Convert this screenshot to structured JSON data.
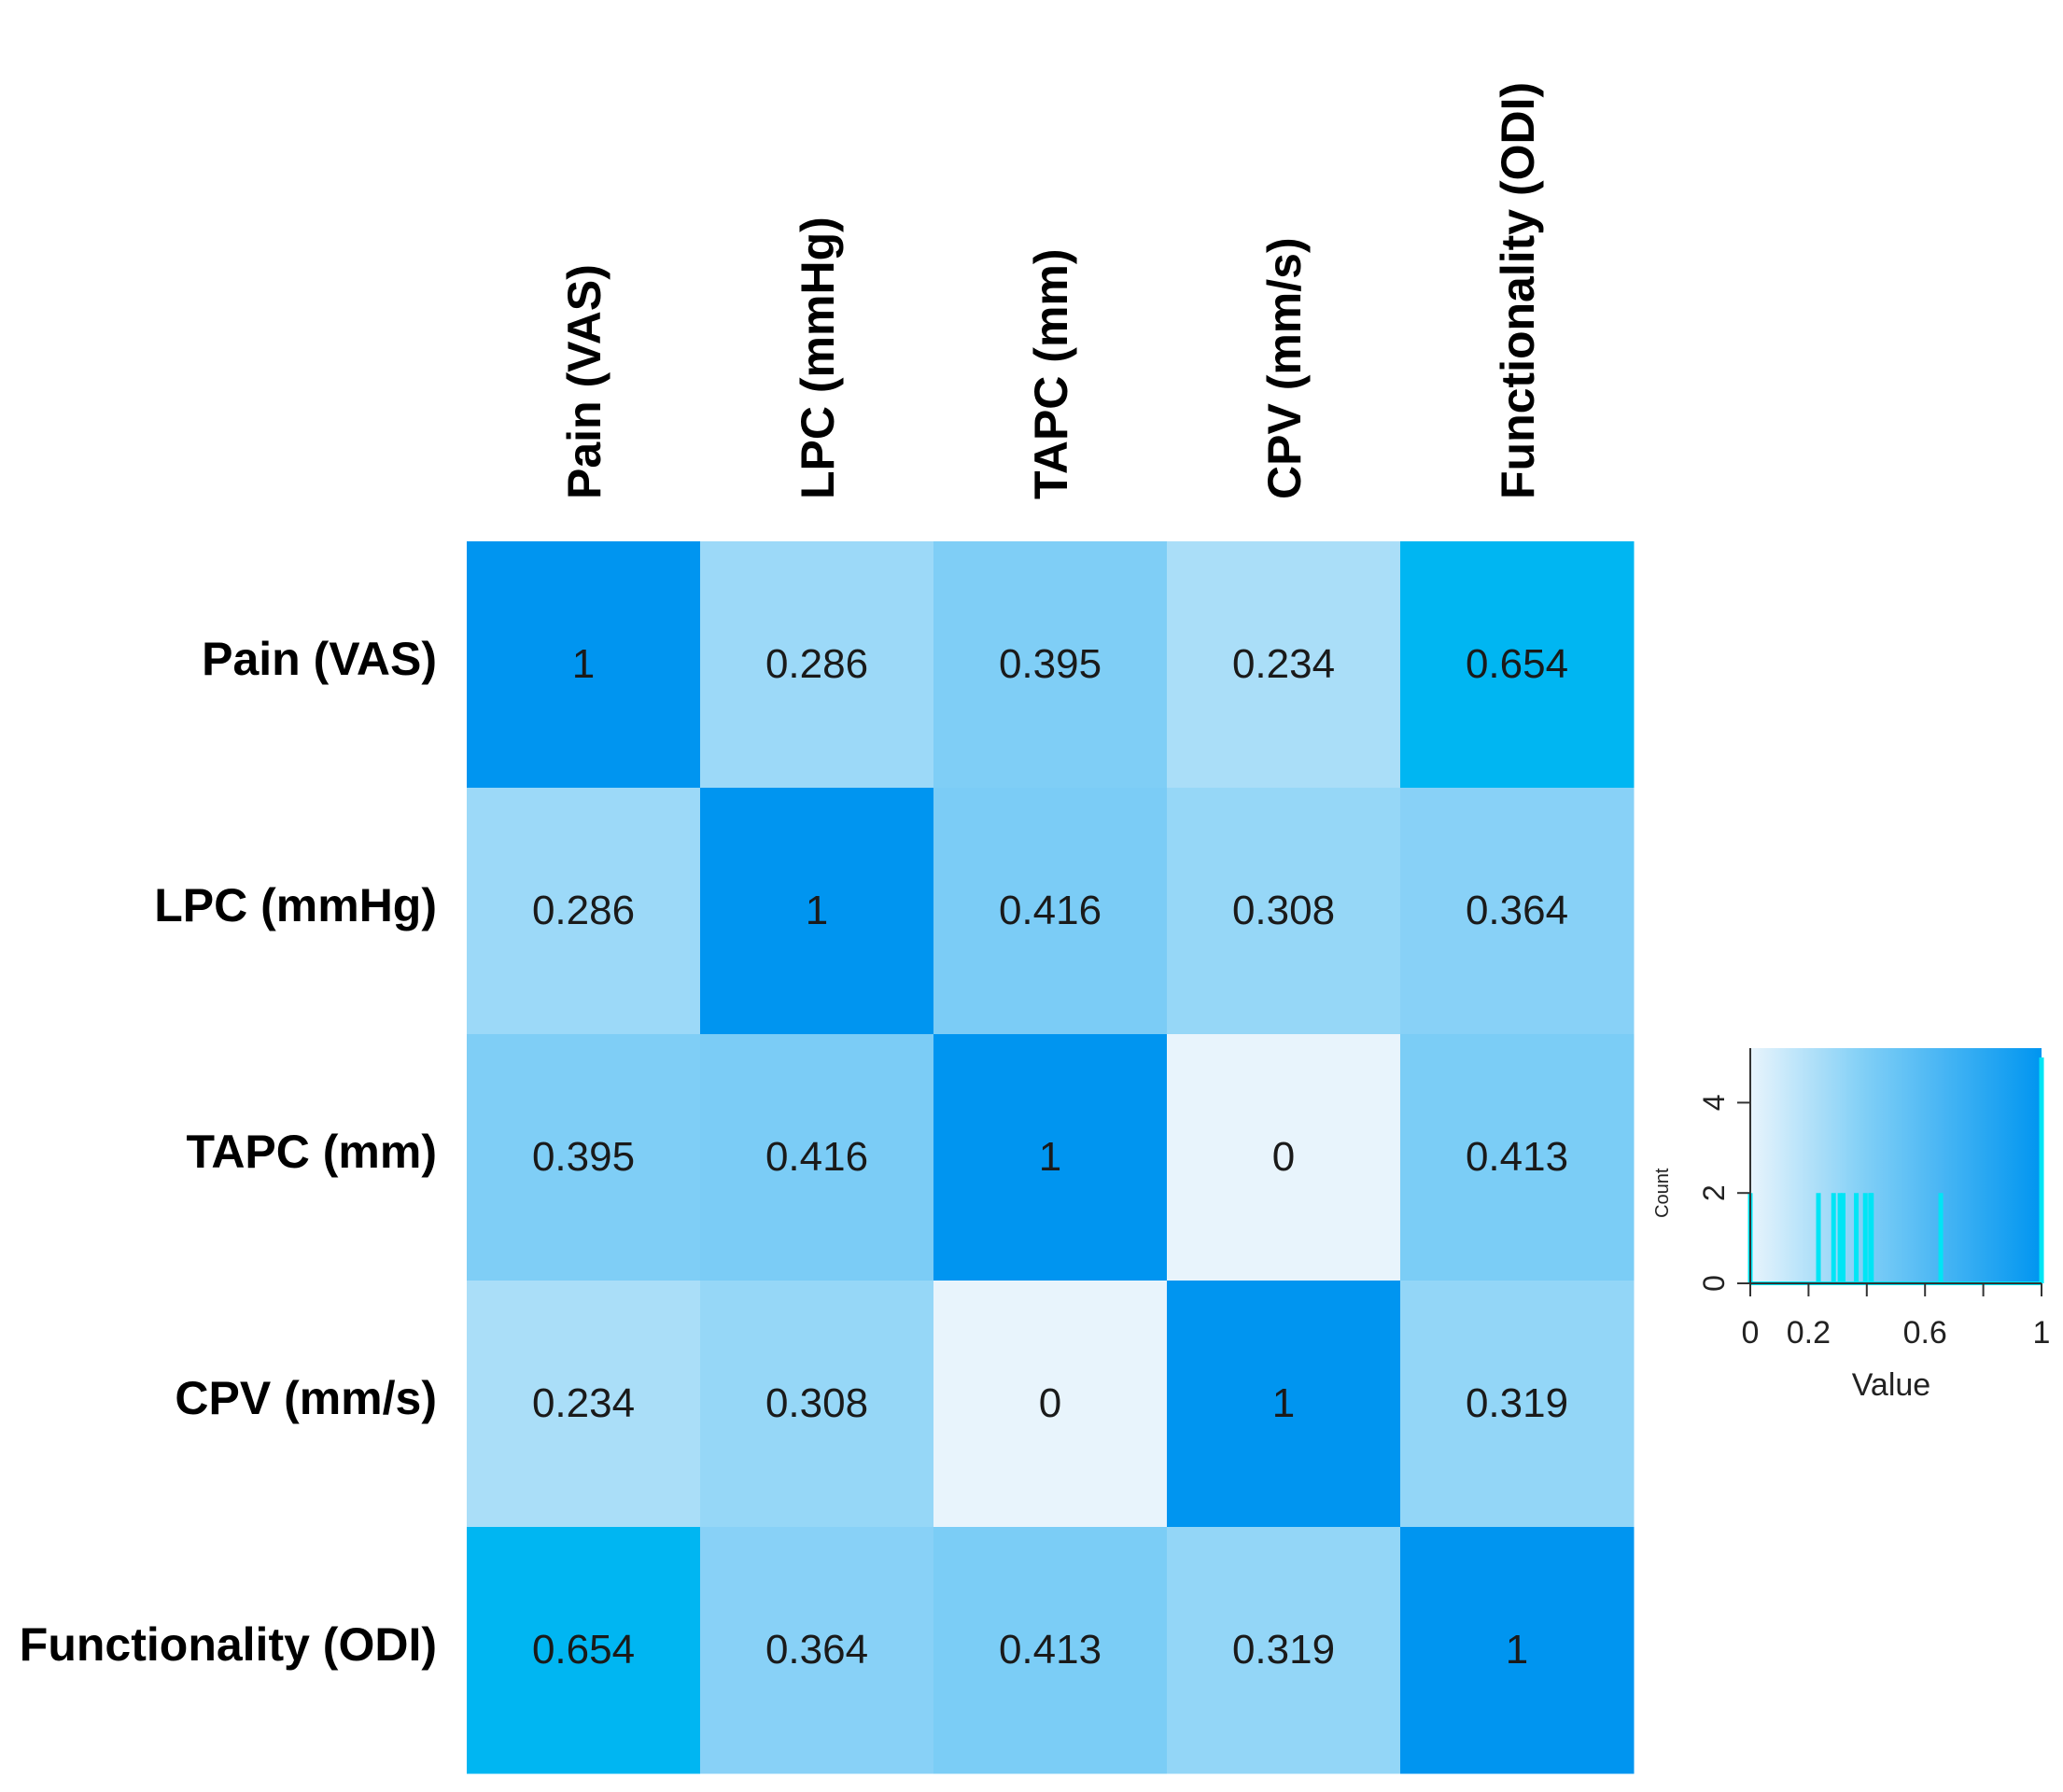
{
  "chart_data": {
    "type": "heatmap",
    "row_labels": [
      "Pain (VAS)",
      "LPC (mmHg)",
      "TAPC (mm)",
      "CPV (mm/s)",
      "Functionality (ODI)"
    ],
    "col_labels": [
      "Pain (VAS)",
      "LPC (mmHg)",
      "TAPC (mm)",
      "CPV (mm/s)",
      "Functionality (ODI)"
    ],
    "values": [
      [
        1,
        0.286,
        0.395,
        0.234,
        0.654
      ],
      [
        0.286,
        1,
        0.416,
        0.308,
        0.364
      ],
      [
        0.395,
        0.416,
        1,
        0,
        0.413
      ],
      [
        0.234,
        0.308,
        0,
        1,
        0.319
      ],
      [
        0.654,
        0.364,
        0.413,
        0.319,
        1
      ]
    ],
    "cell_labels": [
      [
        "1",
        "0.286",
        "0.395",
        "0.234",
        "0.654"
      ],
      [
        "0.286",
        "1",
        "0.416",
        "0.308",
        "0.364"
      ],
      [
        "0.395",
        "0.416",
        "1",
        "0",
        "0.413"
      ],
      [
        "0.234",
        "0.308",
        "0",
        "1",
        "0.319"
      ],
      [
        "0.654",
        "0.364",
        "0.413",
        "0.319",
        "1"
      ]
    ],
    "color_key": {
      "xlabel": "Value",
      "ylabel": "Count",
      "x_ticks": [
        "0",
        "0.2",
        "0.6",
        "1"
      ],
      "x_tick_values": [
        0,
        0.2,
        0.6,
        1
      ],
      "y_ticks": [
        "0",
        "2",
        "4"
      ],
      "y_tick_values": [
        0,
        2,
        4
      ],
      "xlim": [
        0,
        1
      ],
      "ylim": [
        0,
        5
      ],
      "histogram": [
        {
          "x": 0.0,
          "count": 2
        },
        {
          "x": 0.234,
          "count": 2
        },
        {
          "x": 0.286,
          "count": 2
        },
        {
          "x": 0.308,
          "count": 2
        },
        {
          "x": 0.319,
          "count": 2
        },
        {
          "x": 0.364,
          "count": 2
        },
        {
          "x": 0.395,
          "count": 2
        },
        {
          "x": 0.413,
          "count": 2
        },
        {
          "x": 0.416,
          "count": 2
        },
        {
          "x": 0.654,
          "count": 2
        },
        {
          "x": 1.0,
          "count": 5
        }
      ]
    },
    "colors": {
      "low": "#e8f4fc",
      "mid": "#7ecef6",
      "high": "#0095f0",
      "accent_0654": "#00b6f2",
      "histogram_line": "#00e5f5"
    }
  }
}
